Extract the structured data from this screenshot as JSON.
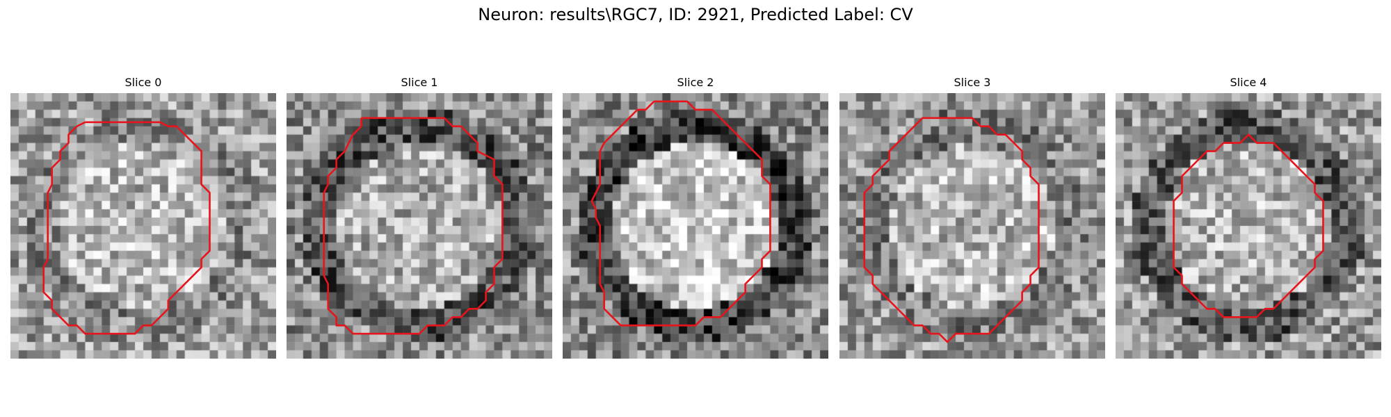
{
  "figure": {
    "title": "Neuron: results\\RGC7, ID: 2921, Predicted Label: CV"
  },
  "style": {
    "contour_color": "#e8141c"
  },
  "slices": [
    {
      "title": "Slice 0",
      "brightness": 0.62,
      "center_brightness": 0.72,
      "dark_ring": 0.08,
      "contour": [
        [
          9,
          3.5
        ],
        [
          18,
          3.5
        ],
        [
          19,
          4
        ],
        [
          20,
          4
        ],
        [
          21,
          5
        ],
        [
          23,
          7
        ],
        [
          23,
          11
        ],
        [
          24,
          12
        ],
        [
          24,
          19
        ],
        [
          23,
          20
        ],
        [
          23,
          21
        ],
        [
          20,
          24
        ],
        [
          19,
          25
        ],
        [
          19,
          26
        ],
        [
          17,
          28
        ],
        [
          16,
          28
        ],
        [
          15,
          29
        ],
        [
          9,
          29
        ],
        [
          8,
          28
        ],
        [
          7,
          28
        ],
        [
          6,
          27
        ],
        [
          5,
          26
        ],
        [
          5,
          25
        ],
        [
          4,
          24
        ],
        [
          4,
          21
        ],
        [
          4.5,
          20
        ],
        [
          4.5,
          12
        ],
        [
          5,
          11
        ],
        [
          5,
          9
        ],
        [
          6,
          8
        ],
        [
          6,
          7
        ],
        [
          7,
          6
        ],
        [
          7,
          5
        ],
        [
          8,
          4
        ],
        [
          9,
          3.5
        ]
      ]
    },
    {
      "title": "Slice 1",
      "brightness": 0.55,
      "center_brightness": 0.68,
      "dark_ring": 0.22,
      "contour": [
        [
          9,
          3
        ],
        [
          19,
          3
        ],
        [
          20,
          4
        ],
        [
          21,
          4
        ],
        [
          22,
          5
        ],
        [
          23,
          6
        ],
        [
          23,
          7
        ],
        [
          25,
          8
        ],
        [
          25,
          10
        ],
        [
          26,
          11
        ],
        [
          26,
          20
        ],
        [
          25,
          21
        ],
        [
          25,
          23
        ],
        [
          24,
          24
        ],
        [
          24,
          25
        ],
        [
          23,
          26
        ],
        [
          22,
          26
        ],
        [
          21,
          27
        ],
        [
          20,
          27
        ],
        [
          19,
          28
        ],
        [
          17,
          28
        ],
        [
          16,
          29
        ],
        [
          8,
          29
        ],
        [
          7,
          28
        ],
        [
          6,
          28
        ],
        [
          6,
          27
        ],
        [
          5,
          26
        ],
        [
          5,
          23
        ],
        [
          4.5,
          22
        ],
        [
          4.5,
          12
        ],
        [
          5,
          11
        ],
        [
          5,
          10
        ],
        [
          6,
          9
        ],
        [
          6,
          8
        ],
        [
          7,
          7
        ],
        [
          8,
          5
        ],
        [
          9,
          4
        ],
        [
          9,
          3
        ]
      ]
    },
    {
      "title": "Slice 2",
      "brightness": 0.55,
      "center_brightness": 0.78,
      "dark_ring": 0.3,
      "contour": [
        [
          11,
          1
        ],
        [
          15,
          1
        ],
        [
          16,
          2
        ],
        [
          18,
          2
        ],
        [
          20,
          4
        ],
        [
          21,
          5
        ],
        [
          22,
          6
        ],
        [
          23,
          7
        ],
        [
          24,
          8
        ],
        [
          24,
          10
        ],
        [
          25,
          11
        ],
        [
          25,
          19
        ],
        [
          24,
          20
        ],
        [
          24,
          21
        ],
        [
          23,
          22
        ],
        [
          22,
          23
        ],
        [
          22,
          24
        ],
        [
          21,
          25
        ],
        [
          20,
          26
        ],
        [
          19,
          27
        ],
        [
          17,
          27
        ],
        [
          16,
          28
        ],
        [
          7,
          28
        ],
        [
          6,
          27
        ],
        [
          5,
          26
        ],
        [
          5,
          24
        ],
        [
          4.5,
          23
        ],
        [
          4.5,
          16
        ],
        [
          4,
          15
        ],
        [
          4,
          14
        ],
        [
          3.5,
          13
        ],
        [
          4,
          12
        ],
        [
          4.5,
          11
        ],
        [
          4.5,
          7
        ],
        [
          5,
          6
        ],
        [
          6,
          5
        ],
        [
          7,
          4
        ],
        [
          8,
          3
        ],
        [
          9,
          2
        ],
        [
          10,
          2
        ],
        [
          11,
          1
        ]
      ]
    },
    {
      "title": "Slice 3",
      "brightness": 0.6,
      "center_brightness": 0.72,
      "dark_ring": 0.1,
      "contour": [
        [
          12,
          3
        ],
        [
          16,
          3
        ],
        [
          17,
          4
        ],
        [
          18,
          4
        ],
        [
          19,
          5
        ],
        [
          20,
          5
        ],
        [
          21,
          6
        ],
        [
          22,
          7
        ],
        [
          22,
          8
        ],
        [
          23,
          9
        ],
        [
          23,
          10
        ],
        [
          24,
          11
        ],
        [
          24,
          21
        ],
        [
          23,
          22
        ],
        [
          23,
          23
        ],
        [
          22,
          24
        ],
        [
          22,
          25
        ],
        [
          21,
          26
        ],
        [
          20,
          27
        ],
        [
          19,
          28
        ],
        [
          18,
          29
        ],
        [
          14,
          29
        ],
        [
          13,
          30
        ],
        [
          12,
          29
        ],
        [
          11,
          29
        ],
        [
          10,
          28
        ],
        [
          9,
          28
        ],
        [
          8,
          27
        ],
        [
          7,
          26
        ],
        [
          6,
          25
        ],
        [
          5,
          24
        ],
        [
          4,
          23
        ],
        [
          4,
          22
        ],
        [
          3,
          21
        ],
        [
          3,
          12
        ],
        [
          4,
          11
        ],
        [
          4,
          10
        ],
        [
          5,
          9
        ],
        [
          6,
          8
        ],
        [
          6,
          7
        ],
        [
          7,
          6
        ],
        [
          8,
          5
        ],
        [
          9,
          4
        ],
        [
          10,
          3
        ],
        [
          12,
          3
        ]
      ]
    },
    {
      "title": "Slice 4",
      "brightness": 0.6,
      "center_brightness": 0.7,
      "dark_ring": 0.25,
      "contour": [
        [
          13,
          6
        ],
        [
          15,
          6
        ],
        [
          16,
          5
        ],
        [
          17,
          6
        ],
        [
          19,
          6
        ],
        [
          20,
          7
        ],
        [
          22,
          9
        ],
        [
          23,
          10
        ],
        [
          24,
          11
        ],
        [
          24,
          12
        ],
        [
          25,
          13
        ],
        [
          25,
          19
        ],
        [
          24,
          20
        ],
        [
          24,
          21
        ],
        [
          23,
          22
        ],
        [
          22,
          23
        ],
        [
          21,
          24
        ],
        [
          20,
          25
        ],
        [
          19,
          26
        ],
        [
          18,
          26
        ],
        [
          17,
          27
        ],
        [
          13,
          27
        ],
        [
          12,
          26
        ],
        [
          11,
          26
        ],
        [
          10,
          25
        ],
        [
          9,
          24
        ],
        [
          8,
          23
        ],
        [
          8,
          22
        ],
        [
          7,
          21
        ],
        [
          7,
          13
        ],
        [
          8,
          12
        ],
        [
          8,
          10
        ],
        [
          9,
          9
        ],
        [
          10,
          8
        ],
        [
          11,
          7
        ],
        [
          12,
          7
        ],
        [
          13,
          6
        ]
      ]
    }
  ]
}
